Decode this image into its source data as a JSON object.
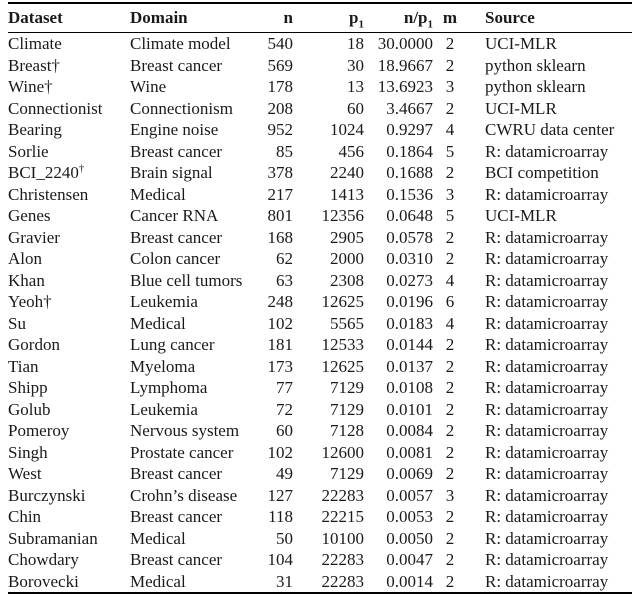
{
  "colors": {
    "background": "#ffffff",
    "text": "#1a1a1a",
    "rule": "#000000"
  },
  "table": {
    "headers": [
      {
        "label": "Dataset"
      },
      {
        "label": "Domain"
      },
      {
        "label": "n"
      },
      {
        "label": "p",
        "sub": "1"
      },
      {
        "label": "n/p",
        "sub": "1"
      },
      {
        "label": "m"
      },
      {
        "label": "Source"
      }
    ],
    "rows": [
      {
        "dataset": "Climate",
        "dataset_sup": "",
        "domain": "Climate model",
        "n": "540",
        "p1": "18",
        "n_over_p1": "30.0000",
        "m": "2",
        "source": "UCI-MLR"
      },
      {
        "dataset": "Breast†",
        "dataset_sup": "",
        "domain": "Breast cancer",
        "n": "569",
        "p1": "30",
        "n_over_p1": "18.9667",
        "m": "2",
        "source": "python sklearn"
      },
      {
        "dataset": "Wine†",
        "dataset_sup": "",
        "domain": "Wine",
        "n": "178",
        "p1": "13",
        "n_over_p1": "13.6923",
        "m": "3",
        "source": "python sklearn"
      },
      {
        "dataset": "Connectionist",
        "dataset_sup": "",
        "domain": "Connectionism",
        "n": "208",
        "p1": "60",
        "n_over_p1": "3.4667",
        "m": "2",
        "source": "UCI-MLR"
      },
      {
        "dataset": "Bearing",
        "dataset_sup": "",
        "domain": "Engine noise",
        "n": "952",
        "p1": "1024",
        "n_over_p1": "0.9297",
        "m": "4",
        "source": "CWRU data center"
      },
      {
        "dataset": "Sorlie",
        "dataset_sup": "",
        "domain": "Breast cancer",
        "n": "85",
        "p1": "456",
        "n_over_p1": "0.1864",
        "m": "5",
        "source": "R: datamicroarray"
      },
      {
        "dataset": "BCI_2240",
        "dataset_sup": "†",
        "domain": "Brain signal",
        "n": "378",
        "p1": "2240",
        "n_over_p1": "0.1688",
        "m": "2",
        "source": "BCI competition"
      },
      {
        "dataset": "Christensen",
        "dataset_sup": "",
        "domain": "Medical",
        "n": "217",
        "p1": "1413",
        "n_over_p1": "0.1536",
        "m": "3",
        "source": "R: datamicroarray"
      },
      {
        "dataset": "Genes",
        "dataset_sup": "",
        "domain": "Cancer RNA",
        "n": "801",
        "p1": "12356",
        "n_over_p1": "0.0648",
        "m": "5",
        "source": "UCI-MLR"
      },
      {
        "dataset": "Gravier",
        "dataset_sup": "",
        "domain": "Breast cancer",
        "n": "168",
        "p1": "2905",
        "n_over_p1": "0.0578",
        "m": "2",
        "source": "R: datamicroarray"
      },
      {
        "dataset": "Alon",
        "dataset_sup": "",
        "domain": "Colon cancer",
        "n": "62",
        "p1": "2000",
        "n_over_p1": "0.0310",
        "m": "2",
        "source": "R: datamicroarray"
      },
      {
        "dataset": "Khan",
        "dataset_sup": "",
        "domain": "Blue cell tumors",
        "n": "63",
        "p1": "2308",
        "n_over_p1": "0.0273",
        "m": "4",
        "source": "R: datamicroarray"
      },
      {
        "dataset": "Yeoh†",
        "dataset_sup": "",
        "domain": "Leukemia",
        "n": "248",
        "p1": "12625",
        "n_over_p1": "0.0196",
        "m": "6",
        "source": "R: datamicroarray"
      },
      {
        "dataset": "Su",
        "dataset_sup": "",
        "domain": "Medical",
        "n": "102",
        "p1": "5565",
        "n_over_p1": "0.0183",
        "m": "4",
        "source": "R: datamicroarray"
      },
      {
        "dataset": "Gordon",
        "dataset_sup": "",
        "domain": "Lung cancer",
        "n": "181",
        "p1": "12533",
        "n_over_p1": "0.0144",
        "m": "2",
        "source": "R: datamicroarray"
      },
      {
        "dataset": "Tian",
        "dataset_sup": "",
        "domain": "Myeloma",
        "n": "173",
        "p1": "12625",
        "n_over_p1": "0.0137",
        "m": "2",
        "source": "R: datamicroarray"
      },
      {
        "dataset": "Shipp",
        "dataset_sup": "",
        "domain": "Lymphoma",
        "n": "77",
        "p1": "7129",
        "n_over_p1": "0.0108",
        "m": "2",
        "source": "R: datamicroarray"
      },
      {
        "dataset": "Golub",
        "dataset_sup": "",
        "domain": "Leukemia",
        "n": "72",
        "p1": "7129",
        "n_over_p1": "0.0101",
        "m": "2",
        "source": "R: datamicroarray"
      },
      {
        "dataset": "Pomeroy",
        "dataset_sup": "",
        "domain": "Nervous system",
        "n": "60",
        "p1": "7128",
        "n_over_p1": "0.0084",
        "m": "2",
        "source": "R: datamicroarray"
      },
      {
        "dataset": "Singh",
        "dataset_sup": "",
        "domain": "Prostate cancer",
        "n": "102",
        "p1": "12600",
        "n_over_p1": "0.0081",
        "m": "2",
        "source": "R: datamicroarray"
      },
      {
        "dataset": "West",
        "dataset_sup": "",
        "domain": "Breast cancer",
        "n": "49",
        "p1": "7129",
        "n_over_p1": "0.0069",
        "m": "2",
        "source": "R: datamicroarray"
      },
      {
        "dataset": "Burczynski",
        "dataset_sup": "",
        "domain": "Crohn’s disease",
        "n": "127",
        "p1": "22283",
        "n_over_p1": "0.0057",
        "m": "3",
        "source": "R: datamicroarray"
      },
      {
        "dataset": "Chin",
        "dataset_sup": "",
        "domain": "Breast cancer",
        "n": "118",
        "p1": "22215",
        "n_over_p1": "0.0053",
        "m": "2",
        "source": "R: datamicroarray"
      },
      {
        "dataset": "Subramanian",
        "dataset_sup": "",
        "domain": "Medical",
        "n": "50",
        "p1": "10100",
        "n_over_p1": "0.0050",
        "m": "2",
        "source": "R: datamicroarray"
      },
      {
        "dataset": "Chowdary",
        "dataset_sup": "",
        "domain": "Breast cancer",
        "n": "104",
        "p1": "22283",
        "n_over_p1": "0.0047",
        "m": "2",
        "source": "R: datamicroarray"
      },
      {
        "dataset": "Borovecki",
        "dataset_sup": "",
        "domain": "Medical",
        "n": "31",
        "p1": "22283",
        "n_over_p1": "0.0014",
        "m": "2",
        "source": "R: datamicroarray"
      }
    ]
  }
}
